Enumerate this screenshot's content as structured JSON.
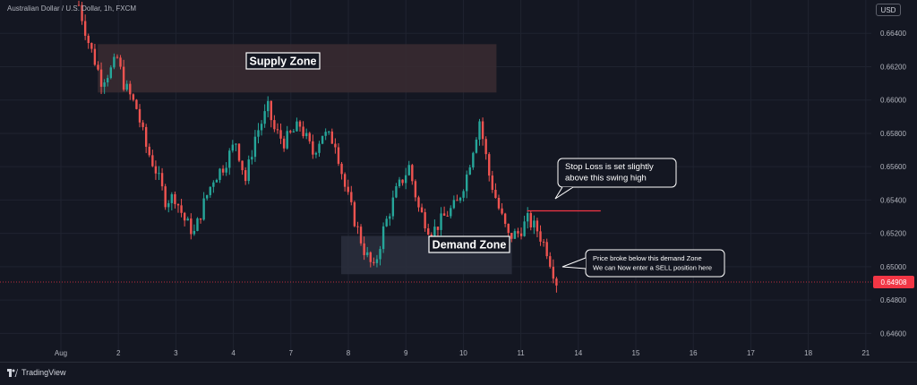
{
  "header": {
    "symbol": "Australian Dollar / U.S. Dollar, 1h, FXCM",
    "currency": "USD"
  },
  "footer": {
    "brand": "TradingView",
    "brand_icon": "tradingview-logo-icon"
  },
  "colors": {
    "background": "#141722",
    "bull": "#26a69a",
    "bear": "#ef5350",
    "supply_zone": "#3a2b31",
    "demand_zone": "#2a2f3d",
    "price_badge": "#f23645",
    "stop_loss_line": "#f23645"
  },
  "chart_data": {
    "type": "candlestick",
    "x_ticks": [
      "Aug",
      "2",
      "3",
      "4",
      "7",
      "8",
      "9",
      "10",
      "11",
      "14",
      "15",
      "16",
      "17",
      "18",
      "21"
    ],
    "y_ticks": [
      "0.66400",
      "0.66200",
      "0.66000",
      "0.65800",
      "0.65600",
      "0.65400",
      "0.65200",
      "0.65000",
      "0.64800",
      "0.64600"
    ],
    "ylim": [
      0.6443,
      0.666
    ],
    "last_price": 0.64908,
    "last_price_label": "0.64908",
    "zones": [
      {
        "name": "Supply Zone",
        "label": "Supply Zone",
        "from": "2",
        "to": "10",
        "low": 0.66045,
        "high": 0.66335
      },
      {
        "name": "Demand Zone",
        "label": "Demand Zone",
        "from": "8",
        "to": "11",
        "low": 0.64955,
        "high": 0.65185
      }
    ],
    "stop_loss": {
      "price": 0.65335,
      "from": "11",
      "to": "14"
    },
    "annotations": [
      {
        "lines": [
          "Stop Loss is set slightly",
          "above this swing high"
        ]
      },
      {
        "lines": [
          "Price broke below this demand Zone",
          "We can Now enter a SELL position here"
        ]
      }
    ],
    "key_points": [
      {
        "t": 0.0,
        "p": 0.6657
      },
      {
        "t": 0.3,
        "p": 0.6635
      },
      {
        "t": 0.7,
        "p": 0.6612
      },
      {
        "t": 1.0,
        "p": 0.6618
      },
      {
        "t": 1.2,
        "p": 0.6625
      },
      {
        "t": 1.4,
        "p": 0.661
      },
      {
        "t": 1.8,
        "p": 0.6595
      },
      {
        "t": 2.1,
        "p": 0.6572
      },
      {
        "t": 2.4,
        "p": 0.6558
      },
      {
        "t": 2.7,
        "p": 0.654
      },
      {
        "t": 3.0,
        "p": 0.6542
      },
      {
        "t": 3.3,
        "p": 0.6528
      },
      {
        "t": 3.6,
        "p": 0.652
      },
      {
        "t": 3.9,
        "p": 0.6538
      },
      {
        "t": 4.2,
        "p": 0.6553
      },
      {
        "t": 4.5,
        "p": 0.656
      },
      {
        "t": 4.9,
        "p": 0.6575
      },
      {
        "t": 5.2,
        "p": 0.6552
      },
      {
        "t": 5.5,
        "p": 0.6578
      },
      {
        "t": 5.9,
        "p": 0.6595
      },
      {
        "t": 6.1,
        "p": 0.6582
      },
      {
        "t": 6.4,
        "p": 0.6575
      },
      {
        "t": 6.9,
        "p": 0.6585
      },
      {
        "t": 7.3,
        "p": 0.6568
      },
      {
        "t": 7.6,
        "p": 0.658
      },
      {
        "t": 8.0,
        "p": 0.6575
      },
      {
        "t": 8.3,
        "p": 0.6548
      },
      {
        "t": 8.6,
        "p": 0.6528
      },
      {
        "t": 8.9,
        "p": 0.651
      },
      {
        "t": 9.2,
        "p": 0.6498
      },
      {
        "t": 9.5,
        "p": 0.6522
      },
      {
        "t": 9.9,
        "p": 0.6545
      },
      {
        "t": 10.3,
        "p": 0.656
      },
      {
        "t": 10.6,
        "p": 0.6535
      },
      {
        "t": 11.0,
        "p": 0.652
      },
      {
        "t": 11.4,
        "p": 0.653
      },
      {
        "t": 11.8,
        "p": 0.6538
      },
      {
        "t": 12.1,
        "p": 0.6555
      },
      {
        "t": 12.5,
        "p": 0.6588
      },
      {
        "t": 12.8,
        "p": 0.6555
      },
      {
        "t": 13.1,
        "p": 0.6535
      },
      {
        "t": 13.4,
        "p": 0.6518
      },
      {
        "t": 13.7,
        "p": 0.652
      },
      {
        "t": 14.0,
        "p": 0.6528
      },
      {
        "t": 14.3,
        "p": 0.6522
      },
      {
        "t": 14.6,
        "p": 0.651
      },
      {
        "t": 14.9,
        "p": 0.6491
      }
    ]
  }
}
